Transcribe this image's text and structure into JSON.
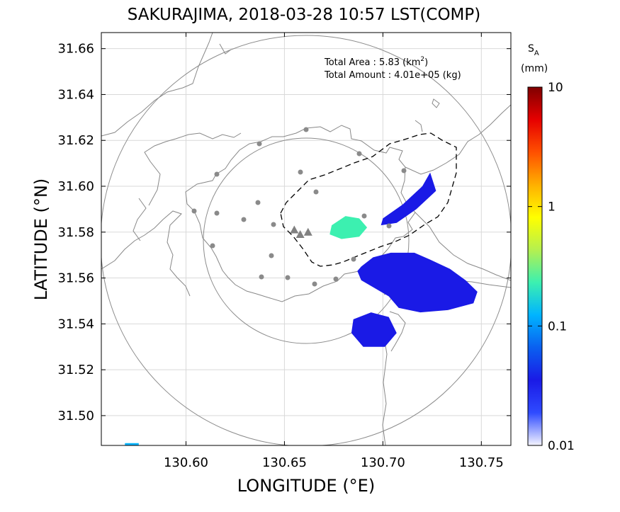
{
  "title": "SAKURAJIMA, 2018-03-28 10:57 LST(COMP)",
  "annotation": {
    "area_label": "Total Area   : 5.83 (km",
    "area_sup": "2",
    "area_close": ")",
    "amount_label": "Total Amount : 4.01e+05 (kg)"
  },
  "colorbar": {
    "symbol": "S",
    "subscript": "A",
    "unit": "(mm)",
    "ticks": [
      {
        "label": "10",
        "value": 10
      },
      {
        "label": "1",
        "value": 1
      },
      {
        "label": "0.1",
        "value": 0.1
      },
      {
        "label": "0.01",
        "value": 0.01
      }
    ],
    "colors": [
      "#f4f4ff",
      "#2f4bff",
      "#1a1ae6",
      "#0a60f0",
      "#00b4ff",
      "#3cf0b0",
      "#b4f050",
      "#ffff00",
      "#ffb000",
      "#ff5000",
      "#e60000",
      "#800000"
    ]
  },
  "chart_data": {
    "type": "heatmap",
    "title": "SAKURAJIMA, 2018-03-28 10:57 LST(COMP)",
    "xlabel": "LONGITUDE (°E)",
    "ylabel": "LATITUDE (°N)",
    "xlim": [
      130.557,
      130.765
    ],
    "ylim": [
      31.487,
      31.667
    ],
    "xticks": [
      130.6,
      130.65,
      130.7,
      130.75
    ],
    "xtick_labels": [
      "130.60",
      "130.65",
      "130.70",
      "130.75"
    ],
    "yticks": [
      31.5,
      31.52,
      31.54,
      31.56,
      31.58,
      31.6,
      31.62,
      31.64,
      31.66
    ],
    "ytick_labels": [
      "31.50",
      "31.52",
      "31.54",
      "31.56",
      "31.58",
      "31.60",
      "31.62",
      "31.64",
      "31.66"
    ],
    "grid": true,
    "colorscale": "log",
    "clim_mm": [
      0.01,
      10
    ],
    "total_area_km2": 5.83,
    "total_amount_kg": 401000,
    "vent_marks": [
      {
        "lon": 130.655,
        "lat": 31.581
      },
      {
        "lon": 130.658,
        "lat": 31.579
      },
      {
        "lon": 130.662,
        "lat": 31.58
      }
    ],
    "deposit_regions": [
      {
        "name": "main",
        "polygon": [
          [
            130.689,
            31.565
          ],
          [
            130.695,
            31.569
          ],
          [
            130.704,
            31.571
          ],
          [
            130.716,
            31.571
          ],
          [
            130.724,
            31.568
          ],
          [
            130.734,
            31.564
          ],
          [
            130.742,
            31.559
          ],
          [
            130.748,
            31.554
          ],
          [
            130.746,
            31.549
          ],
          [
            130.733,
            31.546
          ],
          [
            130.719,
            31.545
          ],
          [
            130.708,
            31.547
          ],
          [
            130.703,
            31.552
          ],
          [
            130.695,
            31.556
          ],
          [
            130.689,
            31.559
          ],
          [
            130.687,
            31.563
          ]
        ],
        "sa_mm": 0.03
      },
      {
        "name": "south",
        "polygon": [
          [
            130.685,
            31.542
          ],
          [
            130.694,
            31.545
          ],
          [
            130.703,
            31.543
          ],
          [
            130.707,
            31.536
          ],
          [
            130.701,
            31.53
          ],
          [
            130.69,
            31.53
          ],
          [
            130.684,
            31.536
          ]
        ],
        "sa_mm": 0.03
      },
      {
        "name": "northeast",
        "polygon": [
          [
            130.7,
            31.586
          ],
          [
            130.71,
            31.592
          ],
          [
            130.72,
            31.6
          ],
          [
            130.724,
            31.606
          ],
          [
            130.727,
            31.598
          ],
          [
            130.717,
            31.59
          ],
          [
            130.707,
            31.584
          ],
          [
            130.699,
            31.583
          ]
        ],
        "sa_mm": 0.03
      },
      {
        "name": "near-vent",
        "polygon": [
          [
            130.674,
            31.583
          ],
          [
            130.681,
            31.587
          ],
          [
            130.688,
            31.586
          ],
          [
            130.692,
            31.582
          ],
          [
            130.688,
            31.578
          ],
          [
            130.679,
            31.577
          ],
          [
            130.673,
            31.579
          ]
        ],
        "sa_mm": 0.25
      },
      {
        "name": "corner",
        "polygon": [
          [
            130.569,
            31.488
          ],
          [
            130.576,
            31.488
          ],
          [
            130.576,
            31.486
          ],
          [
            130.569,
            31.486
          ]
        ],
        "sa_mm": 0.12
      }
    ]
  }
}
